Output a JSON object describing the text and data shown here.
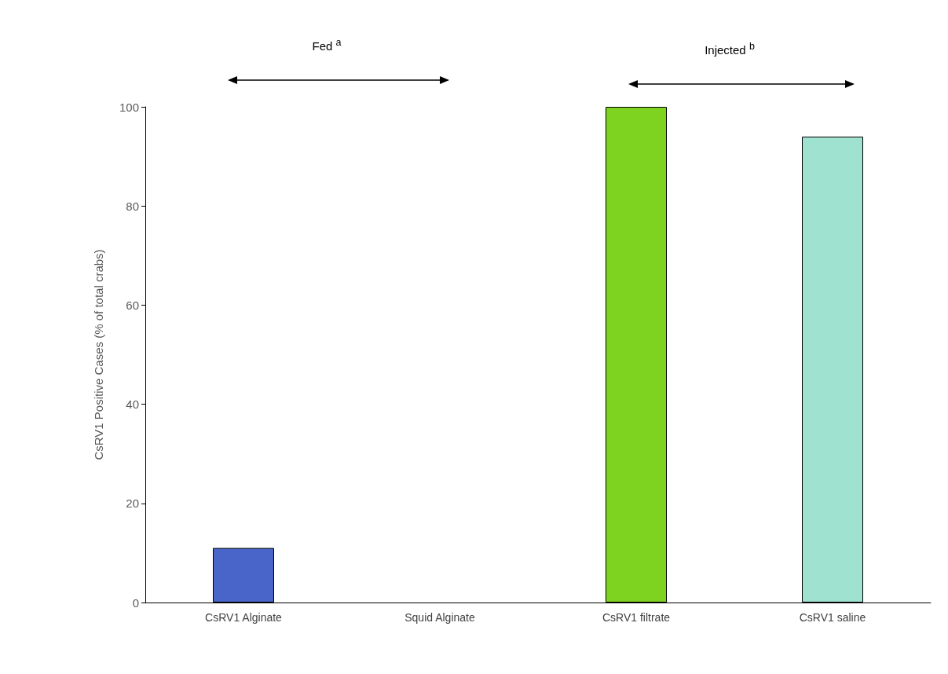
{
  "chart_data": {
    "type": "bar",
    "ylabel": "CsRV1 Positive Cases (% of total crabs)",
    "categories": [
      "CsRV1 Alginate",
      "Squid Alginate",
      "CsRV1 filtrate",
      "CsRV1 saline"
    ],
    "values": [
      11,
      0,
      100,
      94
    ],
    "colors": [
      "#4a65c9",
      "#a0a0a0",
      "#7ed321",
      "#a0e2d0"
    ],
    "ylim": [
      0,
      100
    ],
    "yticks": [
      0,
      20,
      40,
      60,
      80,
      100
    ],
    "grid": false,
    "annotations": [
      "Fed $^{a}$",
      "Injected $^{b}$"
    ]
  }
}
